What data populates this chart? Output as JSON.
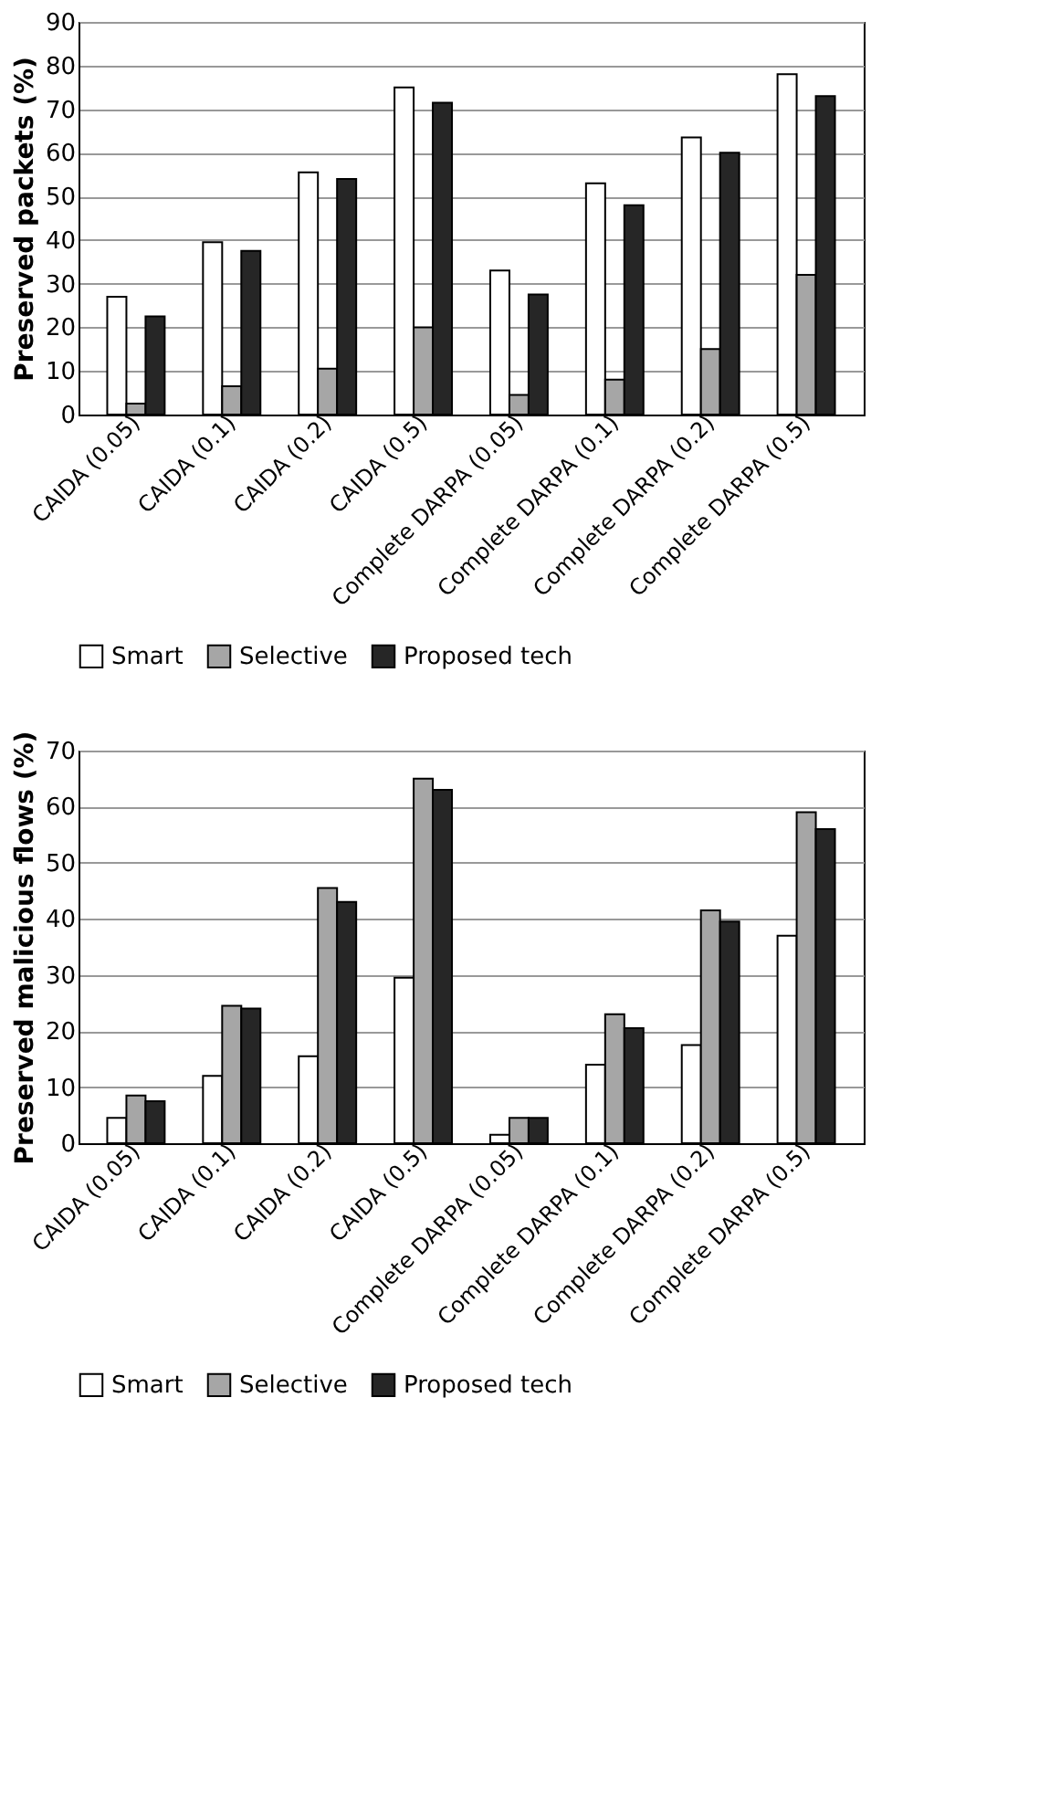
{
  "chart_data": [
    {
      "type": "bar",
      "ylabel": "Preserved packets (%)",
      "categories": [
        "CAIDA (0.05)",
        "CAIDA (0.1)",
        "CAIDA (0.2)",
        "CAIDA (0.5)",
        "Complete DARPA (0.05)",
        "Complete DARPA (0.1)",
        "Complete DARPA (0.2)",
        "Complete DARPA (0.5)"
      ],
      "series": [
        {
          "name": "Smart",
          "color": "#ffffff",
          "values": [
            27,
            39.5,
            55.5,
            75,
            33,
            53,
            63.5,
            78
          ]
        },
        {
          "name": "Selective",
          "color": "#a6a6a6",
          "values": [
            2.5,
            6.5,
            10.5,
            20,
            4.5,
            8,
            15,
            32
          ]
        },
        {
          "name": "Proposed tech",
          "color": "#262626",
          "values": [
            22.5,
            37.5,
            54,
            71.5,
            27.5,
            48,
            60,
            73
          ]
        }
      ],
      "ylim": [
        0,
        90
      ],
      "yticks": [
        0,
        10,
        20,
        30,
        40,
        50,
        60,
        70,
        80,
        90
      ],
      "grid": "y",
      "legend": "bottom"
    },
    {
      "type": "bar",
      "ylabel": "Preserved malicious flows (%)",
      "categories": [
        "CAIDA (0.05)",
        "CAIDA (0.1)",
        "CAIDA (0.2)",
        "CAIDA (0.5)",
        "Complete DARPA (0.05)",
        "Complete DARPA (0.1)",
        "Complete DARPA (0.2)",
        "Complete DARPA (0.5)"
      ],
      "series": [
        {
          "name": "Smart",
          "color": "#ffffff",
          "values": [
            4.5,
            12,
            15.5,
            29.5,
            1.5,
            14,
            17.5,
            37
          ]
        },
        {
          "name": "Selective",
          "color": "#a6a6a6",
          "values": [
            8.5,
            24.5,
            45.5,
            65,
            4.5,
            23,
            41.5,
            59
          ]
        },
        {
          "name": "Proposed tech",
          "color": "#262626",
          "values": [
            7.5,
            24,
            43,
            63,
            4.5,
            20.5,
            39.5,
            56
          ]
        }
      ],
      "ylim": [
        0,
        70
      ],
      "yticks": [
        0,
        10,
        20,
        30,
        40,
        50,
        60,
        70
      ],
      "grid": "y",
      "legend": "bottom"
    }
  ]
}
